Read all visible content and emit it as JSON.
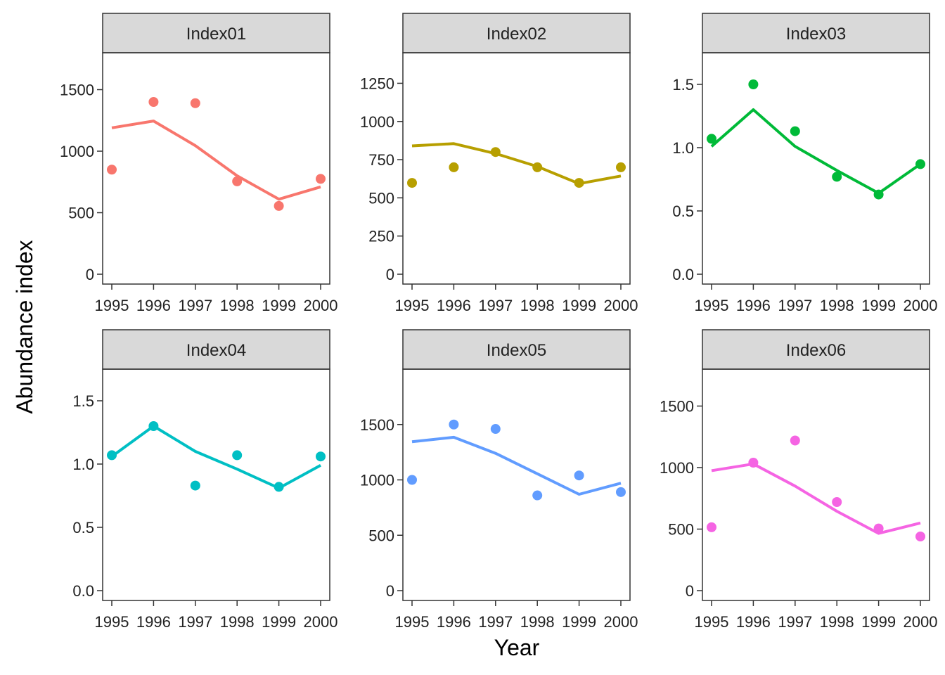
{
  "chart_data": {
    "type": "line",
    "layout": "facet grid 2x3",
    "xlabel": "Year",
    "ylabel": "Abundance index",
    "x": [
      "1995",
      "1996",
      "1997",
      "1998",
      "1999",
      "2000"
    ],
    "points_legend": "points = observed, line = fitted",
    "panels": [
      {
        "name": "Index01",
        "color": "#F8766D",
        "ylim": [
          0,
          1800
        ],
        "yticks": [
          0,
          500,
          1000,
          1500
        ],
        "observed": [
          850,
          1400,
          1390,
          755,
          555,
          775
        ],
        "fitted": [
          1190,
          1245,
          1045,
          800,
          610,
          710
        ]
      },
      {
        "name": "Index02",
        "color": "#B79F00",
        "ylim": [
          0,
          1450
        ],
        "yticks": [
          0,
          250,
          500,
          750,
          1000,
          1250
        ],
        "observed": [
          598,
          700,
          800,
          700,
          598,
          700
        ],
        "fitted": [
          840,
          855,
          790,
          705,
          593,
          643
        ]
      },
      {
        "name": "Index03",
        "color": "#00BA38",
        "ylim": [
          0,
          1.75
        ],
        "yticks": [
          0.0,
          0.5,
          1.0,
          1.5
        ],
        "observed": [
          1.07,
          1.5,
          1.13,
          0.77,
          0.63,
          0.87
        ],
        "fitted": [
          1.01,
          1.3,
          1.01,
          0.82,
          0.64,
          0.87
        ]
      },
      {
        "name": "Index04",
        "color": "#00BFC4",
        "ylim": [
          0,
          1.75
        ],
        "yticks": [
          0.0,
          0.5,
          1.0,
          1.5
        ],
        "observed": [
          1.07,
          1.3,
          0.83,
          1.07,
          0.82,
          1.06
        ],
        "fitted": [
          1.06,
          1.3,
          1.1,
          0.96,
          0.81,
          0.99
        ]
      },
      {
        "name": "Index05",
        "color": "#619CFF",
        "ylim": [
          0,
          2000
        ],
        "yticks": [
          0,
          500,
          1000,
          1500
        ],
        "observed": [
          1000,
          1500,
          1460,
          860,
          1040,
          890
        ],
        "fitted": [
          1345,
          1385,
          1240,
          1055,
          870,
          970
        ]
      },
      {
        "name": "Index06",
        "color": "#F564E3",
        "ylim": [
          0,
          1800
        ],
        "yticks": [
          0,
          500,
          1000,
          1500
        ],
        "observed": [
          515,
          1040,
          1220,
          720,
          505,
          440
        ],
        "fitted": [
          975,
          1030,
          850,
          645,
          465,
          550
        ]
      }
    ]
  }
}
